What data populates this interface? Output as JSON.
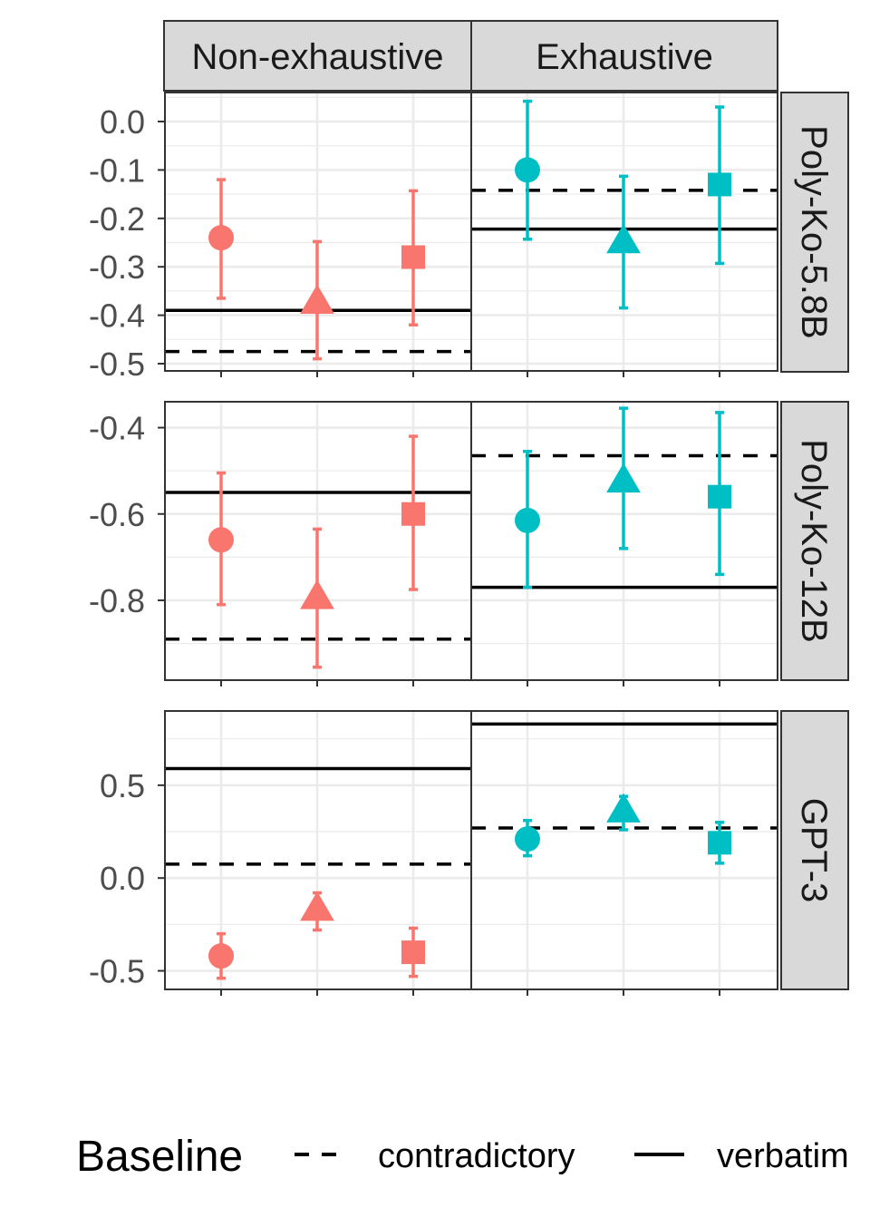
{
  "chart_data": {
    "type": "scatter",
    "facets": {
      "columns": [
        "Non-exhaustive",
        "Exhaustive"
      ],
      "rows": [
        "Poly-Ko-5.8B",
        "Poly-Ko-12B",
        "GPT-3"
      ]
    },
    "colors": {
      "Non-exhaustive": "#F8766D",
      "Exhaustive": "#00BFC4"
    },
    "shapes": [
      "circle",
      "triangle",
      "square"
    ],
    "legend": {
      "title": "Baseline",
      "items": [
        {
          "label": "contradictory",
          "linetype": "dashed"
        },
        {
          "label": "verbatim",
          "linetype": "solid"
        }
      ]
    },
    "panels": [
      {
        "row": "Poly-Ko-5.8B",
        "ylim": [
          -0.515,
          0.06
        ],
        "yticks": [
          0.0,
          -0.1,
          -0.2,
          -0.3,
          -0.4,
          -0.5
        ],
        "ytick_labels": [
          "0.0",
          "-0.1",
          "-0.2",
          "-0.3",
          "-0.4",
          "-0.5"
        ],
        "cells": {
          "Non-exhaustive": {
            "points": [
              {
                "shape": "circle",
                "y": -0.24,
                "lo": -0.365,
                "hi": -0.12
              },
              {
                "shape": "triangle",
                "y": -0.37,
                "lo": -0.49,
                "hi": -0.248
              },
              {
                "shape": "square",
                "y": -0.28,
                "lo": -0.42,
                "hi": -0.143
              }
            ],
            "verbatim": -0.39,
            "contradictory": -0.475
          },
          "Exhaustive": {
            "points": [
              {
                "shape": "circle",
                "y": -0.1,
                "lo": -0.243,
                "hi": 0.042
              },
              {
                "shape": "triangle",
                "y": -0.245,
                "lo": -0.385,
                "hi": -0.113
              },
              {
                "shape": "square",
                "y": -0.13,
                "lo": -0.293,
                "hi": 0.03
              }
            ],
            "verbatim": -0.222,
            "contradictory": -0.142
          }
        }
      },
      {
        "row": "Poly-Ko-12B",
        "ylim": [
          -0.985,
          -0.34
        ],
        "yticks": [
          -0.4,
          -0.6,
          -0.8
        ],
        "ytick_labels": [
          "-0.4",
          "-0.6",
          "-0.8"
        ],
        "cells": {
          "Non-exhaustive": {
            "points": [
              {
                "shape": "circle",
                "y": -0.66,
                "lo": -0.81,
                "hi": -0.505
              },
              {
                "shape": "triangle",
                "y": -0.79,
                "lo": -0.955,
                "hi": -0.635
              },
              {
                "shape": "square",
                "y": -0.6,
                "lo": -0.775,
                "hi": -0.42
              }
            ],
            "verbatim": -0.55,
            "contradictory": -0.89
          },
          "Exhaustive": {
            "points": [
              {
                "shape": "circle",
                "y": -0.615,
                "lo": -0.77,
                "hi": -0.455
              },
              {
                "shape": "triangle",
                "y": -0.52,
                "lo": -0.68,
                "hi": -0.355
              },
              {
                "shape": "square",
                "y": -0.56,
                "lo": -0.74,
                "hi": -0.365
              }
            ],
            "verbatim": -0.77,
            "contradictory": -0.465
          }
        }
      },
      {
        "row": "GPT-3",
        "ylim": [
          -0.6,
          0.9
        ],
        "yticks": [
          0.5,
          0.0,
          -0.5
        ],
        "ytick_labels": [
          "0.5",
          "0.0",
          "-0.5"
        ],
        "cells": {
          "Non-exhaustive": {
            "points": [
              {
                "shape": "circle",
                "y": -0.42,
                "lo": -0.54,
                "hi": -0.3
              },
              {
                "shape": "triangle",
                "y": -0.16,
                "lo": -0.28,
                "hi": -0.08
              },
              {
                "shape": "square",
                "y": -0.4,
                "lo": -0.53,
                "hi": -0.27
              }
            ],
            "verbatim": 0.59,
            "contradictory": 0.075
          },
          "Exhaustive": {
            "points": [
              {
                "shape": "circle",
                "y": 0.21,
                "lo": 0.12,
                "hi": 0.31
              },
              {
                "shape": "triangle",
                "y": 0.37,
                "lo": 0.26,
                "hi": 0.44
              },
              {
                "shape": "square",
                "y": 0.19,
                "lo": 0.08,
                "hi": 0.3
              }
            ],
            "verbatim": 0.83,
            "contradictory": 0.27
          }
        }
      }
    ]
  }
}
